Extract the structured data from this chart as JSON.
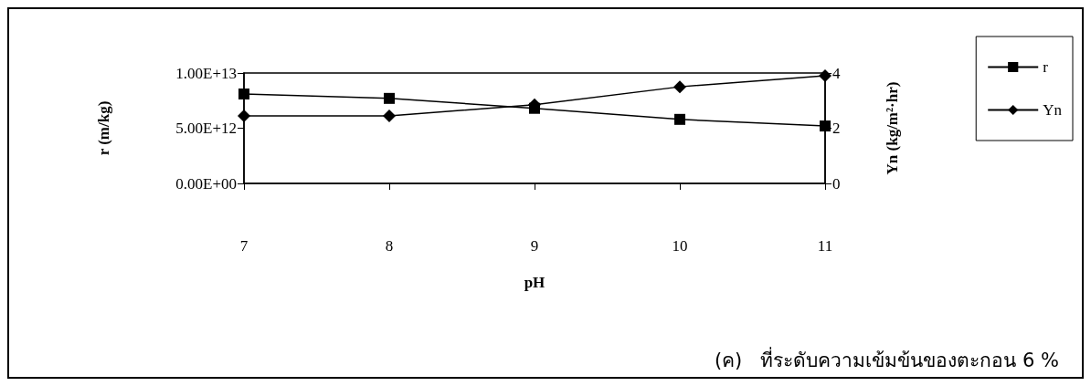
{
  "chart_data": {
    "type": "line",
    "xlabel": "pH",
    "ylabel": "r (m/kg)",
    "y2label": "Yn (kg/m²·hr)",
    "x": [
      7,
      8,
      9,
      10,
      11
    ],
    "xlim": [
      7,
      11
    ],
    "xticks": [
      7,
      8,
      9,
      10,
      11
    ],
    "ylim": [
      0,
      10000000000000
    ],
    "yticks": [
      {
        "value": 0,
        "label": "0.00E+00"
      },
      {
        "value": 5000000000000,
        "label": "5.00E+12"
      },
      {
        "value": 10000000000000,
        "label": "1.00E+13"
      }
    ],
    "y2lim": [
      0,
      4
    ],
    "y2ticks": [
      0,
      2,
      4
    ],
    "series": [
      {
        "name": "r",
        "color": "#000000",
        "marker": "square",
        "values": [
          8100000000000.0,
          7700000000000.0,
          6800000000000.0,
          5800000000000.0,
          5200000000000.0
        ]
      },
      {
        "name": "Yn",
        "color": "#000000",
        "marker": "diamond",
        "axis": "y2",
        "values": [
          2.45,
          2.45,
          2.85,
          3.5,
          3.9
        ]
      }
    ],
    "legend": "right",
    "grid": false,
    "line_style": "solid",
    "annotations": [
      "(ค)   ที่ระดับความเข้มข้นของตะกอน 6 %"
    ]
  }
}
